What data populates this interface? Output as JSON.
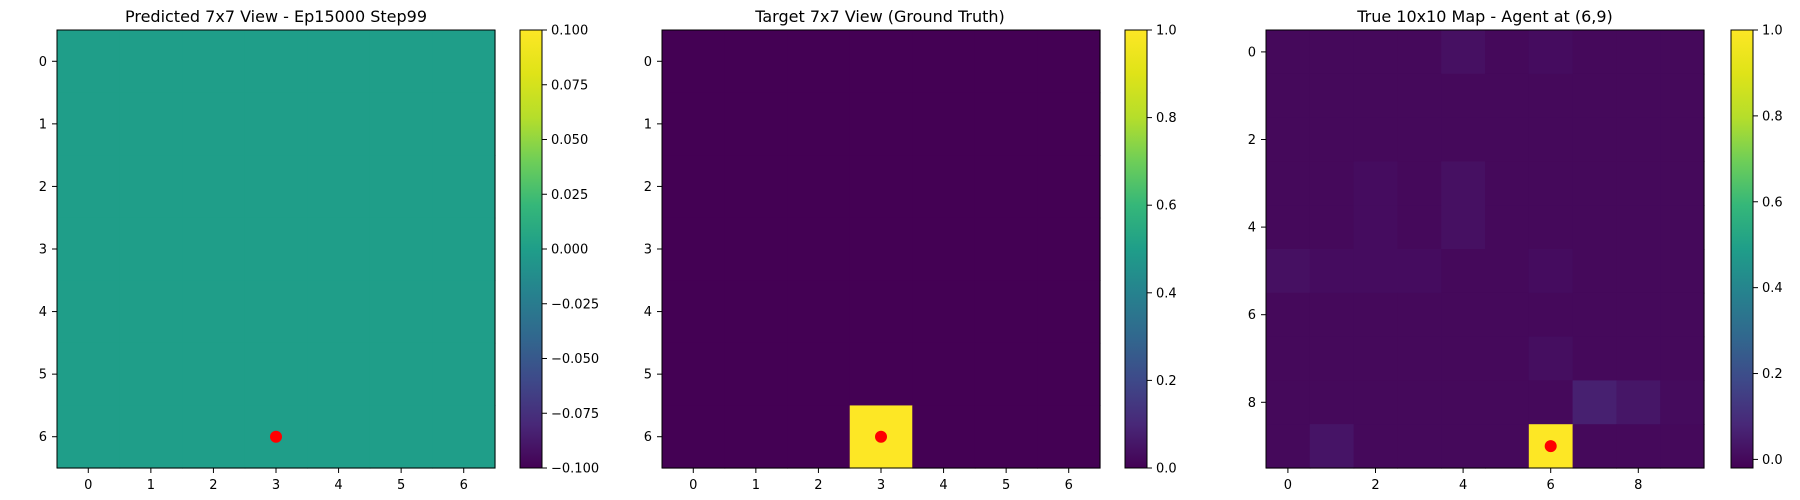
{
  "chart_data": [
    {
      "type": "heatmap",
      "title": "Predicted 7x7 View - Ep15000 Step99",
      "rows": 7,
      "cols": 7,
      "values": [
        [
          0,
          0,
          0,
          0,
          0,
          0,
          0
        ],
        [
          0,
          0,
          0,
          0,
          0,
          0,
          0
        ],
        [
          0,
          0,
          0,
          0,
          0,
          0,
          0
        ],
        [
          0,
          0,
          0,
          0,
          0,
          0,
          0
        ],
        [
          0,
          0,
          0,
          0,
          0,
          0,
          0
        ],
        [
          0,
          0,
          0,
          0,
          0,
          0,
          0
        ],
        [
          0,
          0,
          0,
          0,
          0,
          0,
          0
        ]
      ],
      "vmin": -0.1,
      "vmax": 0.1,
      "colormap": "viridis",
      "xticks": [
        0,
        1,
        2,
        3,
        4,
        5,
        6
      ],
      "xtick_labels": [
        "0",
        "1",
        "2",
        "3",
        "4",
        "5",
        "6"
      ],
      "yticks": [
        0,
        1,
        2,
        3,
        4,
        5,
        6
      ],
      "ytick_labels": [
        "0",
        "1",
        "2",
        "3",
        "4",
        "5",
        "6"
      ],
      "colorbar_ticks": [
        -0.1,
        -0.075,
        -0.05,
        -0.025,
        0,
        0.025,
        0.05,
        0.075,
        0.1
      ],
      "colorbar_tick_labels": [
        "−0.100",
        "−0.075",
        "−0.050",
        "−0.025",
        "0.000",
        "0.025",
        "0.050",
        "0.075",
        "0.100"
      ],
      "marker": {
        "x": 3,
        "y": 6,
        "color": "#ff0000"
      }
    },
    {
      "type": "heatmap",
      "title": "Target 7x7 View (Ground Truth)",
      "rows": 7,
      "cols": 7,
      "values": [
        [
          0,
          0,
          0,
          0,
          0,
          0,
          0
        ],
        [
          0,
          0,
          0,
          0,
          0,
          0,
          0
        ],
        [
          0,
          0,
          0,
          0,
          0,
          0,
          0
        ],
        [
          0,
          0,
          0,
          0,
          0,
          0,
          0
        ],
        [
          0,
          0,
          0,
          0,
          0,
          0,
          0
        ],
        [
          0,
          0,
          0,
          0,
          0,
          0,
          0
        ],
        [
          0,
          0,
          0,
          1,
          0,
          0,
          0
        ]
      ],
      "vmin": 0,
      "vmax": 1,
      "colormap": "viridis",
      "xticks": [
        0,
        1,
        2,
        3,
        4,
        5,
        6
      ],
      "xtick_labels": [
        "0",
        "1",
        "2",
        "3",
        "4",
        "5",
        "6"
      ],
      "yticks": [
        0,
        1,
        2,
        3,
        4,
        5,
        6
      ],
      "ytick_labels": [
        "0",
        "1",
        "2",
        "3",
        "4",
        "5",
        "6"
      ],
      "colorbar_ticks": [
        0,
        0.2,
        0.4,
        0.6,
        0.8,
        1
      ],
      "colorbar_tick_labels": [
        "0.0",
        "0.2",
        "0.4",
        "0.6",
        "0.8",
        "1.0"
      ],
      "marker": {
        "x": 3,
        "y": 6,
        "color": "#ff0000"
      }
    },
    {
      "type": "heatmap",
      "title": "True 10x10 Map - Agent at (6,9)",
      "rows": 10,
      "cols": 10,
      "values": [
        [
          0,
          0,
          0,
          0,
          0.02,
          0,
          0.01,
          0,
          0,
          0
        ],
        [
          0,
          0,
          0,
          0,
          0,
          0,
          0,
          0,
          0,
          0
        ],
        [
          0,
          0,
          0,
          0,
          0,
          0,
          0,
          0,
          0,
          0
        ],
        [
          0,
          0,
          0.01,
          0,
          0.02,
          0,
          0,
          0,
          0,
          0
        ],
        [
          0,
          0,
          0.01,
          0,
          0.02,
          0,
          0,
          0,
          0,
          0
        ],
        [
          0.02,
          0.01,
          0.01,
          0.01,
          0,
          0,
          0.01,
          0,
          0,
          0
        ],
        [
          0,
          0,
          0,
          0,
          0,
          0,
          0,
          0,
          0,
          0
        ],
        [
          0,
          0,
          0,
          0,
          0,
          0,
          0.015,
          0,
          0,
          0
        ],
        [
          0,
          0,
          0,
          0,
          0,
          0,
          0,
          0.06,
          0.035,
          0.005
        ],
        [
          0,
          0.03,
          0,
          0,
          0,
          0,
          1,
          0,
          0,
          0
        ]
      ],
      "vmin": -0.02,
      "vmax": 1,
      "colormap": "viridis",
      "xticks": [
        0,
        2,
        4,
        6,
        8
      ],
      "xtick_labels": [
        "0",
        "2",
        "4",
        "6",
        "8"
      ],
      "yticks": [
        0,
        2,
        4,
        6,
        8
      ],
      "ytick_labels": [
        "0",
        "2",
        "4",
        "6",
        "8"
      ],
      "colorbar_ticks": [
        0,
        0.2,
        0.4,
        0.6,
        0.8,
        1
      ],
      "colorbar_tick_labels": [
        "0.0",
        "0.2",
        "0.4",
        "0.6",
        "0.8",
        "1.0"
      ],
      "marker": {
        "x": 6,
        "y": 9,
        "color": "#ff0000"
      }
    }
  ]
}
